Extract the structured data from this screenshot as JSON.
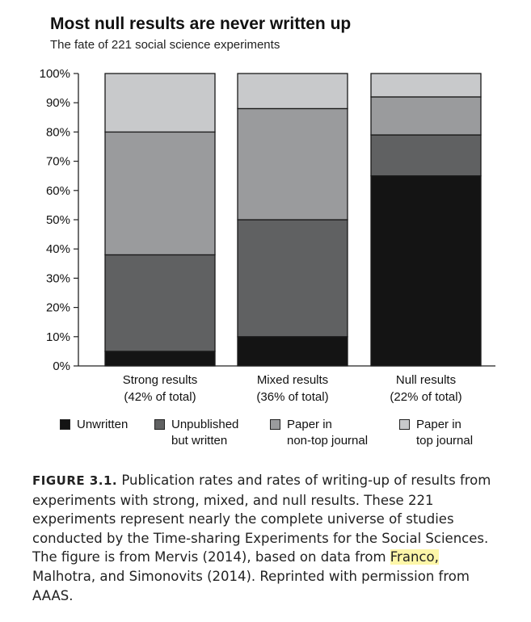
{
  "chart_data": {
    "type": "bar",
    "stacked": true,
    "title": "Most null results are never written up",
    "subtitle": "The fate of 221 social science experiments",
    "categories": [
      [
        "Strong results",
        "(42% of total)"
      ],
      [
        "Mixed results",
        "(36% of total)"
      ],
      [
        "Null results",
        "(22% of total)"
      ]
    ],
    "series": [
      {
        "name": "Unwritten",
        "values": [
          5,
          10,
          65
        ],
        "color": "#141414"
      },
      {
        "name": "Unpublished\nbut written",
        "values": [
          33,
          40,
          14
        ],
        "color": "#606162"
      },
      {
        "name": "Paper in\nnon-top journal",
        "values": [
          42,
          38,
          13
        ],
        "color": "#9a9b9d"
      },
      {
        "name": "Paper in\ntop journal",
        "values": [
          20,
          12,
          8
        ],
        "color": "#c8c9cb"
      }
    ],
    "ylim": [
      0,
      100
    ],
    "yticks": [
      "0%",
      "10%",
      "20%",
      "30%",
      "40%",
      "50%",
      "60%",
      "70%",
      "80%",
      "90%",
      "100%"
    ],
    "grid": false,
    "legend_position": "bottom"
  },
  "caption": {
    "label": "FIGURE 3.1.",
    "text_before": " Publication rates and rates of writing-up of results from experiments with strong, mixed, and null results. These 221 experiments represent nearly the complete universe of studies conducted by the Time-sharing Experiments for the Social Sciences. The figure is from Mervis (2014), based on data from ",
    "highlighted": "Franco,",
    "text_after": " Malhotra, and Simonovits (2014). Reprinted with permission from AAAS."
  }
}
